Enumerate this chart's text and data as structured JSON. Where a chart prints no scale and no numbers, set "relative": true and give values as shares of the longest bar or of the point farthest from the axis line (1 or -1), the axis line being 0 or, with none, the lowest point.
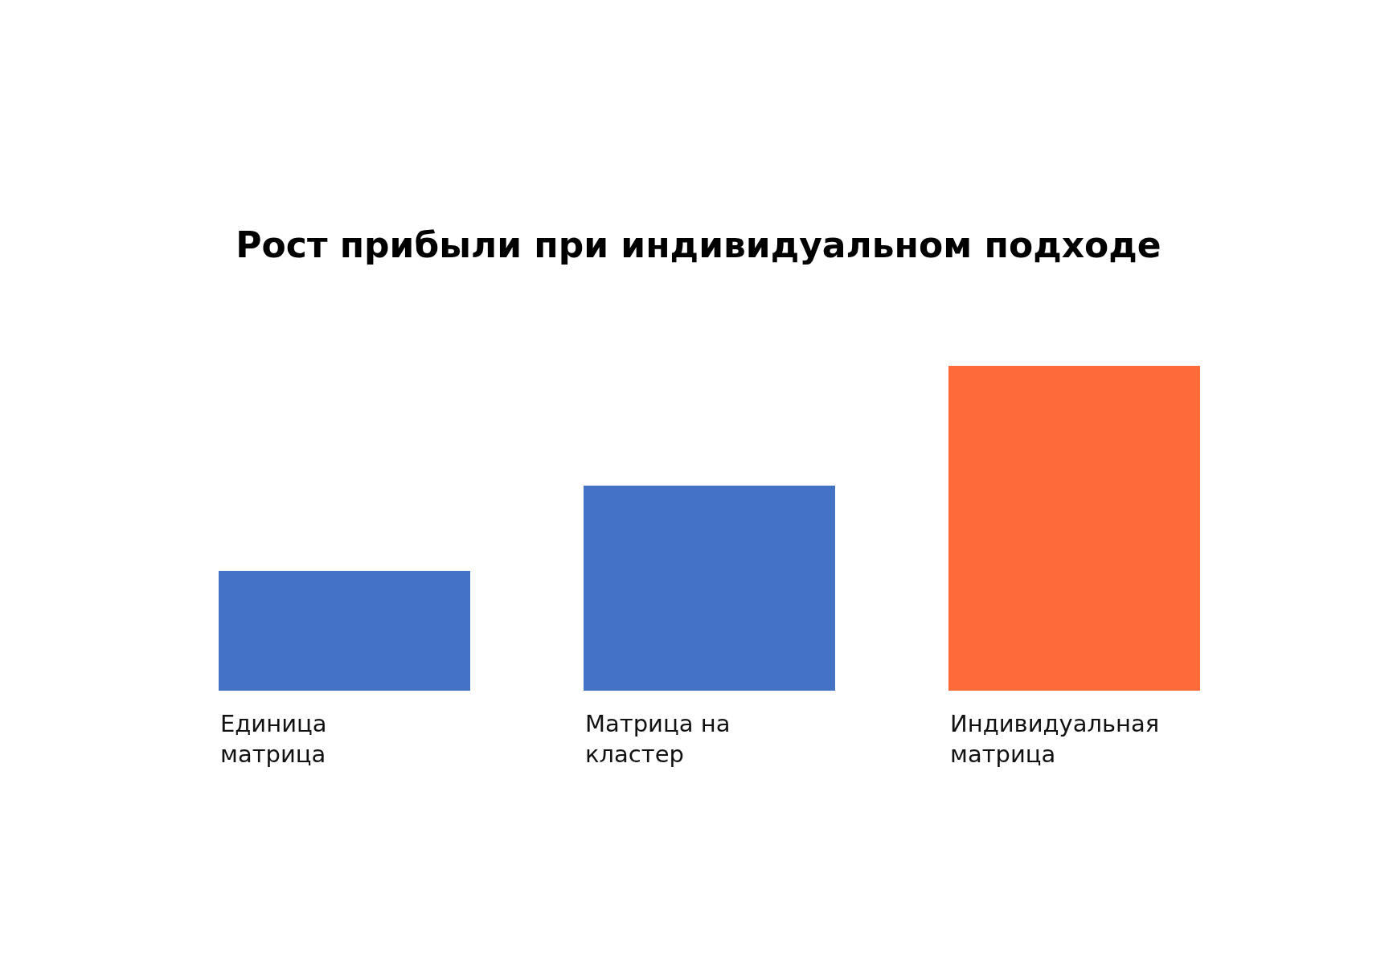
{
  "chart_data": {
    "type": "bar",
    "title": "Рост прибыли при индивидуальном подходе",
    "relative": true,
    "categories": [
      "Единица матрица",
      "Матрица на кластер",
      "Индивидуальная матрица"
    ],
    "values": [
      0.37,
      0.63,
      1
    ],
    "colors": [
      "#4472c4",
      "#4472c4",
      "#ff6a39"
    ],
    "legend": false
  }
}
